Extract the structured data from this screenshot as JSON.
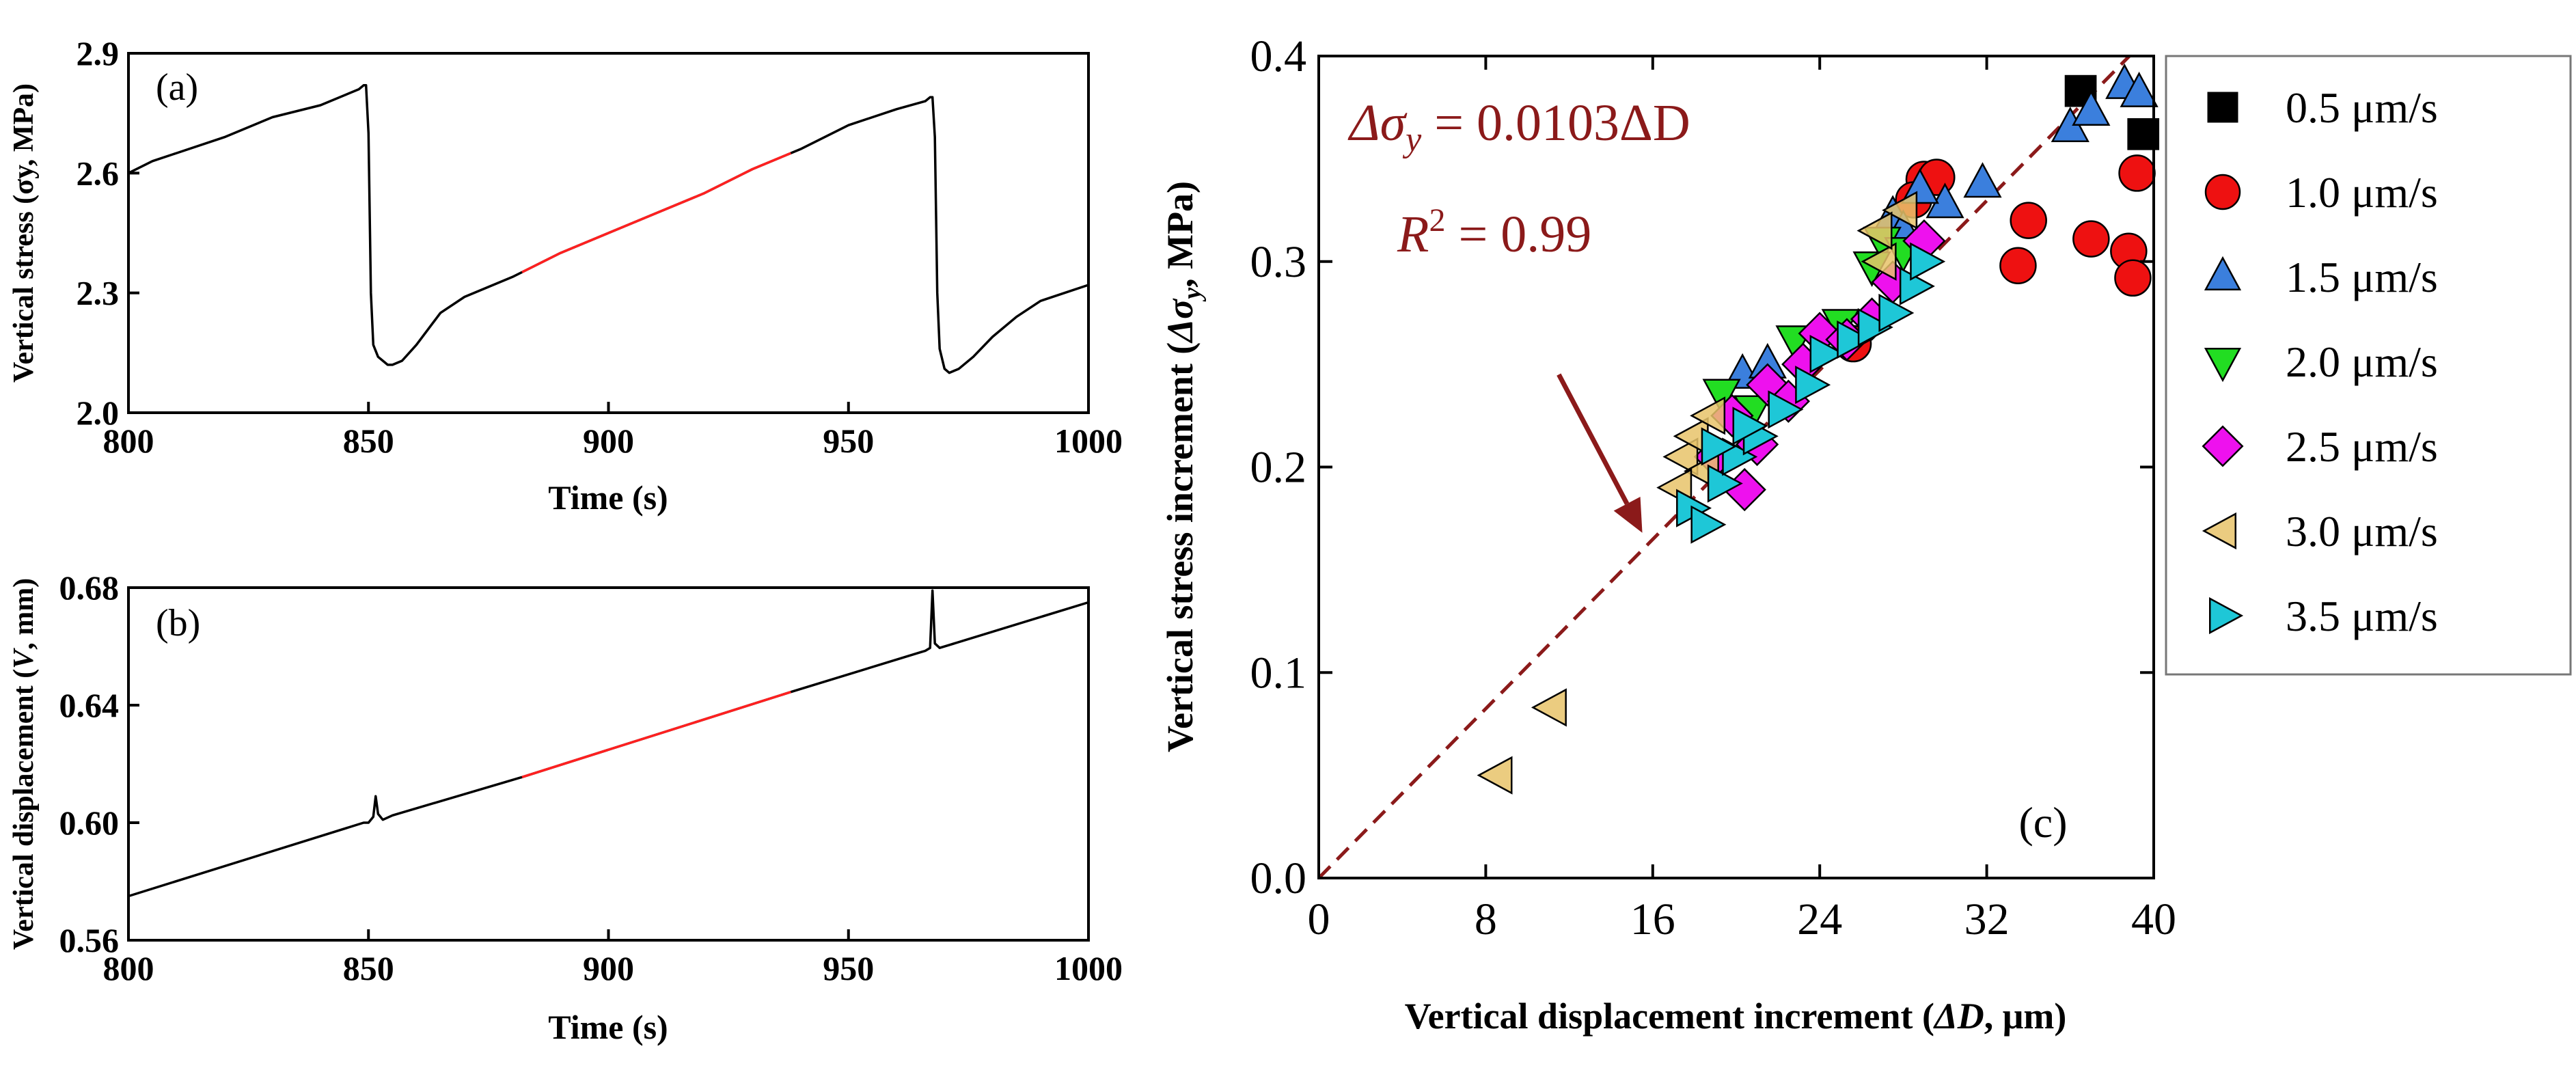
{
  "chart_data": [
    {
      "panel": "(a)",
      "type": "line",
      "xlabel": "Time (s)",
      "ylabel": "Vertical stress (σy, MPa)",
      "xlim": [
        800,
        1000
      ],
      "ylim": [
        2.0,
        2.9
      ],
      "xticks": [
        "800",
        "850",
        "900",
        "950",
        "1000"
      ],
      "yticks": [
        "2.0",
        "2.3",
        "2.6",
        "2.9"
      ],
      "colors": {
        "trace": "#000000",
        "highlight": "#ff2020"
      },
      "highlight_range": [
        882,
        938
      ],
      "x": [
        800,
        805,
        810,
        820,
        830,
        840,
        848,
        849,
        849.5,
        850,
        850.5,
        851,
        852,
        853,
        854,
        855,
        857,
        860,
        865,
        870,
        880,
        890,
        900,
        910,
        920,
        930,
        940,
        950,
        960,
        966,
        967,
        967.5,
        968,
        968.5,
        969,
        970,
        971,
        973,
        976,
        980,
        985,
        990,
        995,
        1000
      ],
      "y": [
        2.6,
        2.63,
        2.65,
        2.69,
        2.74,
        2.77,
        2.81,
        2.82,
        2.82,
        2.7,
        2.3,
        2.17,
        2.14,
        2.13,
        2.12,
        2.12,
        2.13,
        2.17,
        2.25,
        2.29,
        2.34,
        2.4,
        2.45,
        2.5,
        2.55,
        2.61,
        2.66,
        2.72,
        2.76,
        2.78,
        2.79,
        2.79,
        2.69,
        2.3,
        2.16,
        2.11,
        2.1,
        2.11,
        2.14,
        2.19,
        2.24,
        2.28,
        2.3,
        2.32
      ]
    },
    {
      "panel": "(b)",
      "type": "line",
      "xlabel": "Time (s)",
      "ylabel_main": "Vertical displacement (",
      "ylabel_var": "V",
      "ylabel_tail": ", mm)",
      "xlim": [
        800,
        1000
      ],
      "ylim": [
        0.56,
        0.68
      ],
      "xticks": [
        "800",
        "850",
        "900",
        "950",
        "1000"
      ],
      "yticks": [
        "0.56",
        "0.60",
        "0.64",
        "0.68"
      ],
      "colors": {
        "trace": "#000000",
        "highlight": "#ff2020"
      },
      "highlight_range": [
        882,
        938
      ],
      "x": [
        800,
        849,
        850,
        851,
        851.5,
        852,
        853,
        855,
        882,
        938,
        965,
        966,
        967,
        967.5,
        968,
        969,
        971,
        1000
      ],
      "y": [
        0.575,
        0.6,
        0.6,
        0.602,
        0.609,
        0.603,
        0.601,
        0.6025,
        0.6155,
        0.6445,
        0.658,
        0.6585,
        0.6595,
        0.679,
        0.661,
        0.6595,
        0.6605,
        0.675
      ]
    },
    {
      "panel": "(c)",
      "type": "scatter",
      "xlabel_main": "Vertical displacement increment (",
      "xlabel_var": "ΔD",
      "xlabel_tail": ", μm)",
      "ylabel_main": "Vertical stress increment (",
      "ylabel_var": "Δσ",
      "ylabel_sub": "y",
      "ylabel_tail": ", MPa)",
      "xlim": [
        0,
        40
      ],
      "ylim": [
        0.0,
        0.4
      ],
      "xticks": [
        "0",
        "8",
        "16",
        "24",
        "32",
        "40"
      ],
      "yticks": [
        "0.0",
        "0.1",
        "0.2",
        "0.3",
        "0.4"
      ],
      "fit": {
        "slope": 0.0103,
        "equation": "Δσ",
        "equation_sub": "y",
        "equation_tail": " = 0.0103ΔD",
        "r2_label": "R",
        "r2_sup": "2",
        "r2_tail": " = 0.99",
        "color": "#8b1a1a"
      },
      "arrow": {
        "from": [
          11.5,
          0.245
        ],
        "to": [
          15.5,
          0.168
        ]
      },
      "series": [
        {
          "name": "0.5 μm/s",
          "marker": "square",
          "color": "#000000",
          "points": [
            [
              36.5,
              0.383
            ],
            [
              39.5,
              0.362
            ]
          ]
        },
        {
          "name": "1.0 μm/s",
          "marker": "circle",
          "color": "#ee1111",
          "points": [
            [
              29.0,
              0.34
            ],
            [
              29.6,
              0.341
            ],
            [
              33.5,
              0.298
            ],
            [
              34.0,
              0.32
            ],
            [
              37.0,
              0.311
            ],
            [
              38.8,
              0.305
            ],
            [
              39.0,
              0.292
            ],
            [
              39.2,
              0.343
            ],
            [
              28.5,
              0.33
            ],
            [
              25.6,
              0.26
            ]
          ]
        },
        {
          "name": "1.5 μm/s",
          "marker": "triangle-up",
          "color": "#3b7fdd",
          "points": [
            [
              36.0,
              0.365
            ],
            [
              37.0,
              0.373
            ],
            [
              38.6,
              0.386
            ],
            [
              39.3,
              0.382
            ],
            [
              31.8,
              0.338
            ],
            [
              30.0,
              0.328
            ],
            [
              28.8,
              0.335
            ],
            [
              27.5,
              0.322
            ],
            [
              20.3,
              0.245
            ],
            [
              21.5,
              0.25
            ],
            [
              28.0,
              0.315
            ]
          ]
        },
        {
          "name": "2.0 μm/s",
          "marker": "triangle-down",
          "color": "#22dd22",
          "points": [
            [
              19.3,
              0.236
            ],
            [
              22.8,
              0.262
            ],
            [
              27.0,
              0.31
            ],
            [
              28.0,
              0.305
            ],
            [
              20.8,
              0.228
            ],
            [
              25.0,
              0.27
            ],
            [
              26.5,
              0.298
            ]
          ]
        },
        {
          "name": "2.5 μm/s",
          "marker": "diamond",
          "color": "#ee11ee",
          "points": [
            [
              19.0,
              0.205
            ],
            [
              20.4,
              0.189
            ],
            [
              21.0,
              0.211
            ],
            [
              21.5,
              0.24
            ],
            [
              22.5,
              0.232
            ],
            [
              24.0,
              0.265
            ],
            [
              25.3,
              0.262
            ],
            [
              26.5,
              0.272
            ],
            [
              27.5,
              0.29
            ],
            [
              29.0,
              0.31
            ],
            [
              23.2,
              0.25
            ],
            [
              19.8,
              0.225
            ]
          ]
        },
        {
          "name": "3.0 μm/s",
          "marker": "triangle-left",
          "color": "#e8c36a",
          "points": [
            [
              8.6,
              0.05
            ],
            [
              11.2,
              0.083
            ],
            [
              17.5,
              0.205
            ],
            [
              18.0,
              0.215
            ],
            [
              18.5,
              0.198
            ],
            [
              17.2,
              0.19
            ],
            [
              18.8,
              0.225
            ],
            [
              27.0,
              0.3
            ],
            [
              28.0,
              0.325
            ],
            [
              26.8,
              0.315
            ]
          ]
        },
        {
          "name": "3.5 μm/s",
          "marker": "triangle-right",
          "color": "#1ec7d7",
          "points": [
            [
              17.8,
              0.18
            ],
            [
              18.5,
              0.172
            ],
            [
              19.3,
              0.192
            ],
            [
              20.0,
              0.205
            ],
            [
              21.0,
              0.215
            ],
            [
              22.2,
              0.228
            ],
            [
              23.5,
              0.24
            ],
            [
              24.2,
              0.255
            ],
            [
              25.5,
              0.262
            ],
            [
              26.5,
              0.268
            ],
            [
              27.5,
              0.275
            ],
            [
              28.5,
              0.288
            ],
            [
              29.0,
              0.3
            ],
            [
              20.5,
              0.22
            ],
            [
              19.0,
              0.21
            ]
          ]
        }
      ]
    }
  ]
}
